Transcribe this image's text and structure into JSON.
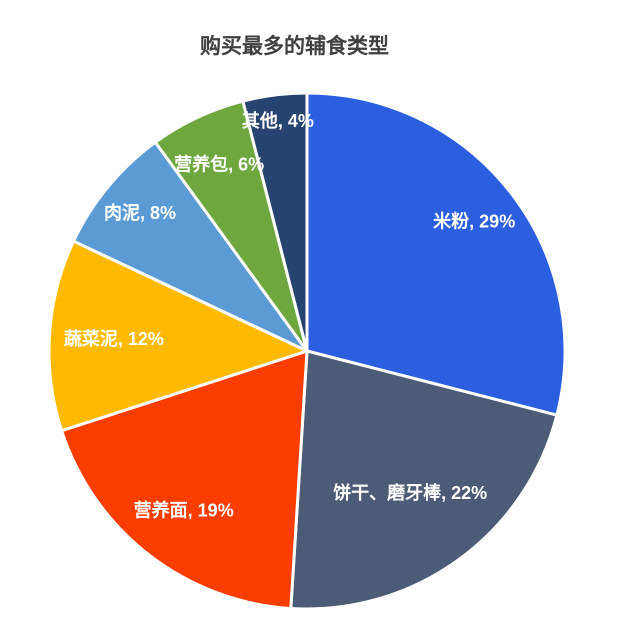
{
  "chart_data": {
    "type": "pie",
    "title": "购买最多的辅食类型",
    "title_color": "#3F3F3F",
    "categories": [
      "米粉",
      "饼干、磨牙棒",
      "营养面",
      "蔬菜泥",
      "肉泥",
      "营养包",
      "其他"
    ],
    "values": [
      29,
      22,
      19,
      12,
      8,
      6,
      4
    ],
    "unit": "%",
    "labels": [
      "米粉, 29%",
      "饼干、磨牙棒, 22%",
      "营养面, 19%",
      "蔬菜泥, 12%",
      "肉泥, 8%",
      "营养包, 6%",
      "其他, 4%"
    ],
    "slice_colors": [
      "#2B5FE0",
      "#4C5C77",
      "#FB3E00",
      "#FFBA00",
      "#5B9BD5",
      "#6DA73E",
      "#274470"
    ],
    "label_color": "#FFFFFF",
    "slice_border_color": "#FFFFFF",
    "legend": "none",
    "labels_position": "inside",
    "start_angle_deg": 0,
    "direction": "clockwise",
    "label_radius_hint": [
      0.82,
      0.68,
      0.78,
      0.75,
      0.84,
      0.8,
      0.9
    ]
  }
}
